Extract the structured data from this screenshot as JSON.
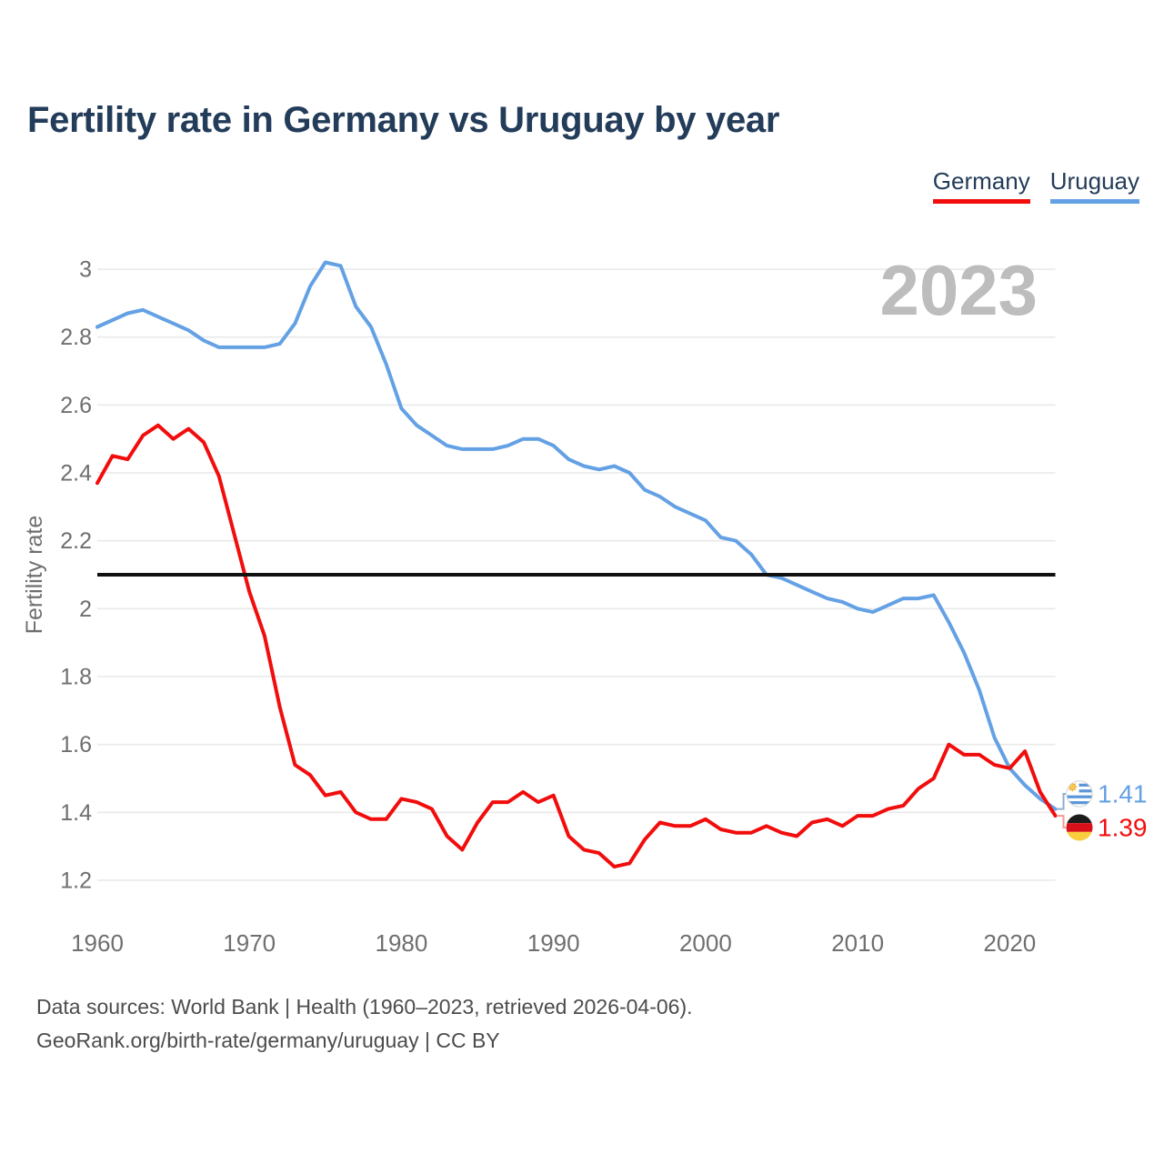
{
  "title": "Fertility rate in Germany vs Uruguay by year",
  "watermark": "2023",
  "legend": {
    "germany": {
      "label": "Germany",
      "color": "#f20d0d"
    },
    "uruguay": {
      "label": "Uruguay",
      "color": "#64a1e4"
    }
  },
  "end_labels": {
    "uruguay": {
      "series": "Uruguay",
      "value": "1.41",
      "flag": "uruguay-flag",
      "color": "#64a1e4"
    },
    "germany": {
      "series": "Germany",
      "value": "1.39",
      "flag": "germany-flag",
      "color": "#f20d0d"
    }
  },
  "footer": {
    "line1": "Data sources: World Bank | Health (1960–2023, retrieved 2026-04-06).",
    "line2": "GeoRank.org/birth-rate/germany/uruguay | CC BY"
  },
  "colors": {
    "title": "#233c59",
    "tick": "#6f6f6f",
    "grid": "#e9e9e9",
    "watermark": "#bdbdbd",
    "footer": "#4c4c4c",
    "reference_line": "#111111",
    "background": "#ffffff"
  },
  "chart_data": {
    "type": "line",
    "title": "Fertility rate in Germany vs Uruguay by year",
    "ylabel": "Fertility rate",
    "xlabel": "",
    "grid": "horizontal",
    "legend_position": "top-right",
    "xlim": [
      1960,
      2023
    ],
    "ylim": [
      1.2,
      3.0
    ],
    "x_ticks": [
      1960,
      1970,
      1980,
      1990,
      2000,
      2010,
      2020
    ],
    "y_ticks": [
      3,
      2.8,
      2.6,
      2.4,
      2.2,
      2,
      1.8,
      1.6,
      1.4,
      1.2
    ],
    "y_tick_labels": [
      "3",
      "2.8",
      "2.6",
      "2.4",
      "2.2",
      "2",
      "1.8",
      "1.6",
      "1.4",
      "1.2"
    ],
    "reference_line": {
      "value": 2.1,
      "color": "#111111",
      "meaning": "replacement-rate"
    },
    "x": [
      1960,
      1961,
      1962,
      1963,
      1964,
      1965,
      1966,
      1967,
      1968,
      1969,
      1970,
      1971,
      1972,
      1973,
      1974,
      1975,
      1976,
      1977,
      1978,
      1979,
      1980,
      1981,
      1982,
      1983,
      1984,
      1985,
      1986,
      1987,
      1988,
      1989,
      1990,
      1991,
      1992,
      1993,
      1994,
      1995,
      1996,
      1997,
      1998,
      1999,
      2000,
      2001,
      2002,
      2003,
      2004,
      2005,
      2006,
      2007,
      2008,
      2009,
      2010,
      2011,
      2012,
      2013,
      2014,
      2015,
      2016,
      2017,
      2018,
      2019,
      2020,
      2021,
      2022,
      2023
    ],
    "series": [
      {
        "name": "Germany",
        "color": "#f20d0d",
        "values": [
          2.37,
          2.45,
          2.44,
          2.51,
          2.54,
          2.5,
          2.53,
          2.49,
          2.39,
          2.22,
          2.05,
          1.92,
          1.71,
          1.54,
          1.51,
          1.45,
          1.46,
          1.4,
          1.38,
          1.38,
          1.44,
          1.43,
          1.41,
          1.33,
          1.29,
          1.37,
          1.43,
          1.43,
          1.46,
          1.43,
          1.45,
          1.33,
          1.29,
          1.28,
          1.24,
          1.25,
          1.32,
          1.37,
          1.36,
          1.36,
          1.38,
          1.35,
          1.34,
          1.34,
          1.36,
          1.34,
          1.33,
          1.37,
          1.38,
          1.36,
          1.39,
          1.39,
          1.41,
          1.42,
          1.47,
          1.5,
          1.6,
          1.57,
          1.57,
          1.54,
          1.53,
          1.58,
          1.46,
          1.39
        ]
      },
      {
        "name": "Uruguay",
        "color": "#64a1e4",
        "values": [
          2.83,
          2.85,
          2.87,
          2.88,
          2.86,
          2.84,
          2.82,
          2.79,
          2.77,
          2.77,
          2.77,
          2.77,
          2.78,
          2.84,
          2.95,
          3.02,
          3.01,
          2.89,
          2.83,
          2.72,
          2.59,
          2.54,
          2.51,
          2.48,
          2.47,
          2.47,
          2.47,
          2.48,
          2.5,
          2.5,
          2.48,
          2.44,
          2.42,
          2.41,
          2.42,
          2.4,
          2.35,
          2.33,
          2.3,
          2.28,
          2.26,
          2.21,
          2.2,
          2.16,
          2.1,
          2.09,
          2.07,
          2.05,
          2.03,
          2.02,
          2.0,
          1.99,
          2.01,
          2.03,
          2.03,
          2.04,
          1.96,
          1.87,
          1.76,
          1.62,
          1.53,
          1.48,
          1.44,
          1.41
        ]
      }
    ]
  }
}
